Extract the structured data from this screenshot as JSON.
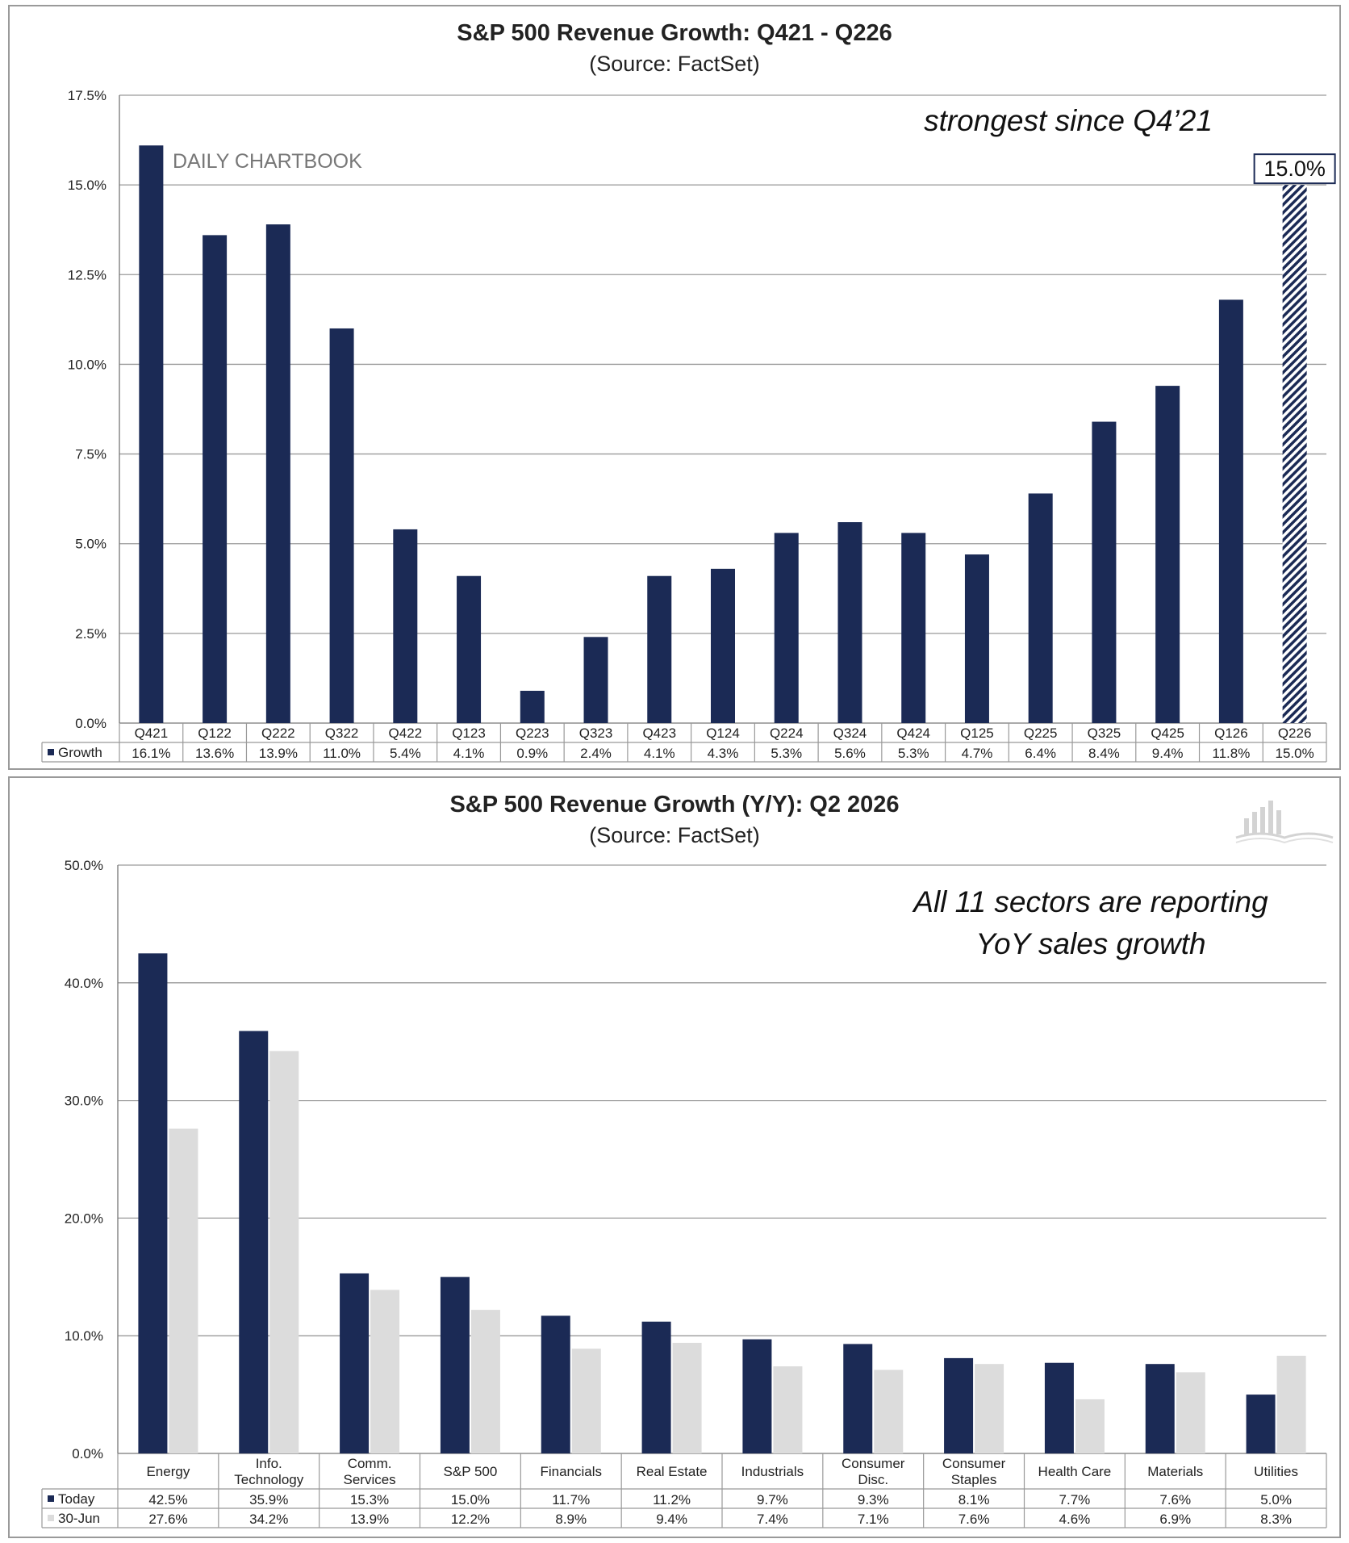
{
  "chart_data": [
    {
      "type": "bar",
      "title": "S&P 500 Revenue Growth:  Q421 - Q226",
      "subtitle": "(Source:  FactSet)",
      "annotation": "strongest since Q4’21",
      "watermark": "DAILY CHARTBOOK",
      "highlight_label": "15.0%",
      "categories": [
        "Q421",
        "Q122",
        "Q222",
        "Q322",
        "Q422",
        "Q123",
        "Q223",
        "Q323",
        "Q423",
        "Q124",
        "Q224",
        "Q324",
        "Q424",
        "Q125",
        "Q225",
        "Q325",
        "Q425",
        "Q126",
        "Q226"
      ],
      "series": [
        {
          "name": "Growth",
          "values": [
            16.1,
            13.6,
            13.9,
            11.0,
            5.4,
            4.1,
            0.9,
            2.4,
            4.1,
            4.3,
            5.3,
            5.6,
            5.3,
            4.7,
            6.4,
            8.4,
            9.4,
            11.8,
            15.0
          ],
          "labels": [
            "16.1%",
            "13.6%",
            "13.9%",
            "11.0%",
            "5.4%",
            "4.1%",
            "0.9%",
            "2.4%",
            "4.1%",
            "4.3%",
            "5.3%",
            "5.6%",
            "5.3%",
            "4.7%",
            "6.4%",
            "8.4%",
            "9.4%",
            "11.8%",
            "15.0%"
          ]
        }
      ],
      "estimate_index": 18,
      "ylim": [
        0,
        17.5
      ],
      "yticks": [
        "0.0%",
        "2.5%",
        "5.0%",
        "7.5%",
        "10.0%",
        "12.5%",
        "15.0%",
        "17.5%"
      ],
      "grid": true,
      "legend": "data-table",
      "colors": {
        "bar": "#1b2a55",
        "grid": "#9a9a9a"
      }
    },
    {
      "type": "bar",
      "title": "S&P 500 Revenue Growth (Y/Y):  Q2 2026",
      "subtitle": "(Source:  FactSet)",
      "annotation_lines": [
        "All 11 sectors are reporting",
        "YoY sales growth"
      ],
      "categories": [
        [
          "Energy"
        ],
        [
          "Info.",
          "Technology"
        ],
        [
          "Comm.",
          "Services"
        ],
        [
          "S&P 500"
        ],
        [
          "Financials"
        ],
        [
          "Real Estate"
        ],
        [
          "Industrials"
        ],
        [
          "Consumer",
          "Disc."
        ],
        [
          "Consumer",
          "Staples"
        ],
        [
          "Health Care"
        ],
        [
          "Materials"
        ],
        [
          "Utilities"
        ]
      ],
      "series": [
        {
          "name": "Today",
          "values": [
            42.5,
            35.9,
            15.3,
            15.0,
            11.7,
            11.2,
            9.7,
            9.3,
            8.1,
            7.7,
            7.6,
            5.0
          ],
          "labels": [
            "42.5%",
            "35.9%",
            "15.3%",
            "15.0%",
            "11.7%",
            "11.2%",
            "9.7%",
            "9.3%",
            "8.1%",
            "7.7%",
            "7.6%",
            "5.0%"
          ]
        },
        {
          "name": "30-Jun",
          "values": [
            27.6,
            34.2,
            13.9,
            12.2,
            8.9,
            9.4,
            7.4,
            7.1,
            7.6,
            4.6,
            6.9,
            8.3
          ],
          "labels": [
            "27.6%",
            "34.2%",
            "13.9%",
            "12.2%",
            "8.9%",
            "9.4%",
            "7.4%",
            "7.1%",
            "7.6%",
            "4.6%",
            "6.9%",
            "8.3%"
          ]
        }
      ],
      "ylim": [
        0,
        50
      ],
      "yticks": [
        "0.0%",
        "10.0%",
        "20.0%",
        "30.0%",
        "40.0%",
        "50.0%"
      ],
      "grid": true,
      "legend": "data-table",
      "logo_icon": "bar-chart-book-logo-icon",
      "colors": {
        "today": "#1b2a55",
        "jun": "#dcdcdc",
        "grid": "#9a9a9a"
      }
    }
  ]
}
